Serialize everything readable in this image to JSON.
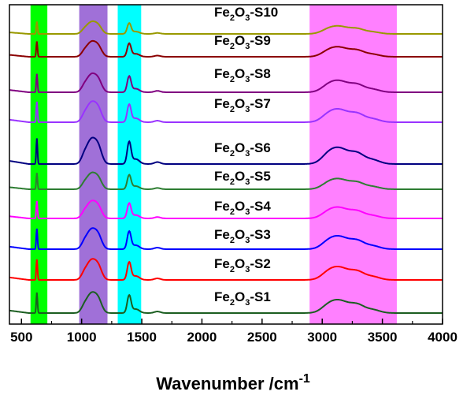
{
  "chart_data": {
    "type": "line",
    "title": "",
    "xlabel": "Wavenumber /cm",
    "xlabel_superscript": "-1",
    "ylabel": "",
    "xlim": [
      400,
      4000
    ],
    "x_ticks": [
      "500",
      "1000",
      "1500",
      "2000",
      "2500",
      "3000",
      "3500",
      "4000"
    ],
    "grid": false,
    "highlight_bands": [
      {
        "from": 575,
        "to": 715,
        "color": "#00ff00"
      },
      {
        "from": 980,
        "to": 1215,
        "color": "#a070d8"
      },
      {
        "from": 1300,
        "to": 1495,
        "color": "#00ffff"
      },
      {
        "from": 2895,
        "to": 3620,
        "color": "#ff80ff"
      }
    ],
    "series": [
      {
        "name": "S1",
        "label_base": "Fe",
        "label_sub1": "2",
        "label_mid": "O",
        "label_sub2": "3",
        "label_suffix": "-S1",
        "color": "#1b5e20",
        "offset": 0,
        "scale": 1.0
      },
      {
        "name": "S2",
        "label_base": "Fe",
        "label_sub1": "2",
        "label_mid": "O",
        "label_sub2": "3",
        "label_suffix": "-S2",
        "color": "#ff0000",
        "offset": 1,
        "scale": 1.0
      },
      {
        "name": "S3",
        "label_base": "Fe",
        "label_sub1": "2",
        "label_mid": "O",
        "label_sub2": "3",
        "label_suffix": "-S3",
        "color": "#0000ff",
        "offset": 2,
        "scale": 1.0
      },
      {
        "name": "S4",
        "label_base": "Fe",
        "label_sub1": "2",
        "label_mid": "O",
        "label_sub2": "3",
        "label_suffix": "-S4",
        "color": "#ff00ff",
        "offset": 3,
        "scale": 0.85
      },
      {
        "name": "S5",
        "label_base": "Fe",
        "label_sub1": "2",
        "label_mid": "O",
        "label_sub2": "3",
        "label_suffix": "-S5",
        "color": "#2e7d32",
        "offset": 4,
        "scale": 0.8
      },
      {
        "name": "S6",
        "label_base": "Fe",
        "label_sub1": "2",
        "label_mid": "O",
        "label_sub2": "3",
        "label_suffix": "-S6",
        "color": "#000080",
        "offset": 5,
        "scale": 1.25
      },
      {
        "name": "S7",
        "label_base": "Fe",
        "label_sub1": "2",
        "label_mid": "O",
        "label_sub2": "3",
        "label_suffix": "-S7",
        "color": "#9933ff",
        "offset": 6,
        "scale": 1.0
      },
      {
        "name": "S8",
        "label_base": "Fe",
        "label_sub1": "2",
        "label_mid": "O",
        "label_sub2": "3",
        "label_suffix": "-S8",
        "color": "#800080",
        "offset": 7,
        "scale": 0.9
      },
      {
        "name": "S9",
        "label_base": "Fe",
        "label_sub1": "2",
        "label_mid": "O",
        "label_sub2": "3",
        "label_suffix": "-S9",
        "color": "#8b0000",
        "offset": 8,
        "scale": 0.75
      },
      {
        "name": "S10",
        "label_base": "Fe",
        "label_sub1": "2",
        "label_mid": "O",
        "label_sub2": "3",
        "label_suffix": "-S10",
        "color": "#999900",
        "offset": 9,
        "scale": 0.6
      }
    ]
  }
}
